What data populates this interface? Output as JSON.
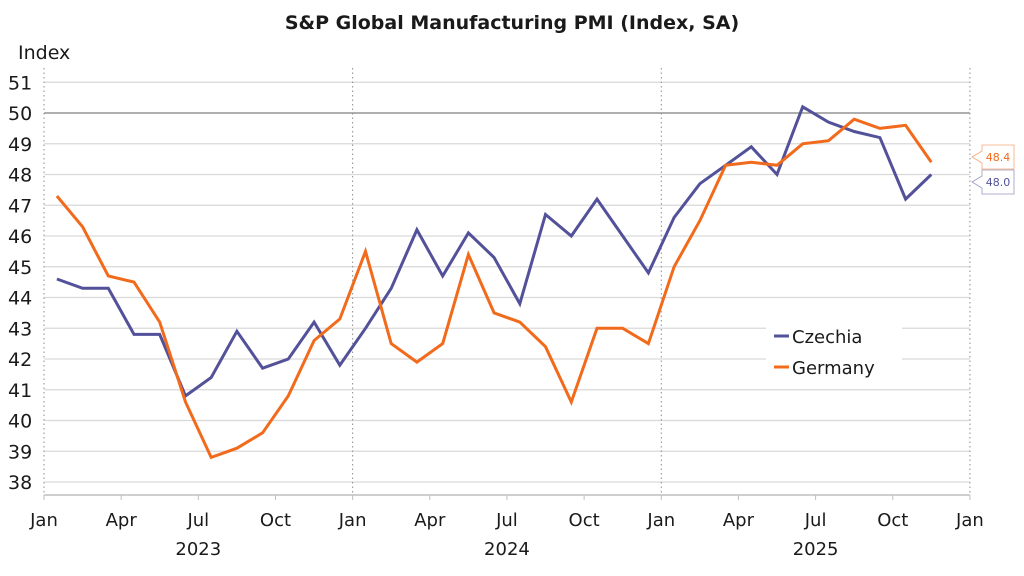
{
  "chart_data": {
    "type": "line",
    "title": "S&P Global Manufacturing PMI (Index, SA)",
    "xlabel": "",
    "ylabel": "Index",
    "ylim": [
      37.6,
      51.6
    ],
    "yticks": [
      38,
      39,
      40,
      41,
      42,
      43,
      44,
      45,
      46,
      47,
      48,
      49,
      50,
      51
    ],
    "reference_line": 50,
    "grid": true,
    "x_start": "2023-01",
    "x_end": "2026-01",
    "month_ticks": [
      {
        "label": "Jan",
        "month_index": 0
      },
      {
        "label": "Apr",
        "month_index": 3
      },
      {
        "label": "Jul",
        "month_index": 6
      },
      {
        "label": "Oct",
        "month_index": 9
      },
      {
        "label": "Jan",
        "month_index": 12
      },
      {
        "label": "Apr",
        "month_index": 15
      },
      {
        "label": "Jul",
        "month_index": 18
      },
      {
        "label": "Oct",
        "month_index": 21
      },
      {
        "label": "Jan",
        "month_index": 24
      },
      {
        "label": "Apr",
        "month_index": 27
      },
      {
        "label": "Jul",
        "month_index": 30
      },
      {
        "label": "Oct",
        "month_index": 33
      },
      {
        "label": "Jan",
        "month_index": 36
      }
    ],
    "year_labels": [
      {
        "label": "2023",
        "month_index": 6
      },
      {
        "label": "2024",
        "month_index": 18
      },
      {
        "label": "2025",
        "month_index": 30
      }
    ],
    "year_dividers": [
      12,
      24,
      36
    ],
    "x": [
      "2023-01",
      "2023-02",
      "2023-03",
      "2023-04",
      "2023-05",
      "2023-06",
      "2023-07",
      "2023-08",
      "2023-09",
      "2023-10",
      "2023-11",
      "2023-12",
      "2024-01",
      "2024-02",
      "2024-03",
      "2024-04",
      "2024-05",
      "2024-06",
      "2024-07",
      "2024-08",
      "2024-09",
      "2024-10",
      "2024-11",
      "2024-12",
      "2025-01",
      "2025-02",
      "2025-03",
      "2025-04",
      "2025-05",
      "2025-06",
      "2025-07",
      "2025-08",
      "2025-09",
      "2025-10",
      "2025-11"
    ],
    "series": [
      {
        "name": "Czechia",
        "color": "#525199",
        "values": [
          44.6,
          44.3,
          44.3,
          42.8,
          42.8,
          40.8,
          41.4,
          42.9,
          41.7,
          42.0,
          43.2,
          41.8,
          43.0,
          44.3,
          46.2,
          44.7,
          46.1,
          45.3,
          43.8,
          46.7,
          46.0,
          47.2,
          46.0,
          44.8,
          46.6,
          47.7,
          48.3,
          48.9,
          48.0,
          50.2,
          49.7,
          49.4,
          49.2,
          47.2,
          48.0
        ],
        "end_label": "48.0"
      },
      {
        "name": "Germany",
        "color": "#F26A1B",
        "values": [
          47.3,
          46.3,
          44.7,
          44.5,
          43.2,
          40.6,
          38.8,
          39.1,
          39.6,
          40.8,
          42.6,
          43.3,
          45.5,
          42.5,
          41.9,
          42.5,
          45.4,
          43.5,
          43.2,
          42.4,
          40.6,
          43.0,
          43.0,
          42.5,
          45.0,
          46.5,
          48.3,
          48.4,
          48.3,
          49.0,
          49.1,
          49.8,
          49.5,
          49.6,
          48.4
        ],
        "end_label": "48.4"
      }
    ],
    "legend": {
      "position": "lower-right",
      "entries": [
        "Czechia",
        "Germany"
      ]
    }
  }
}
